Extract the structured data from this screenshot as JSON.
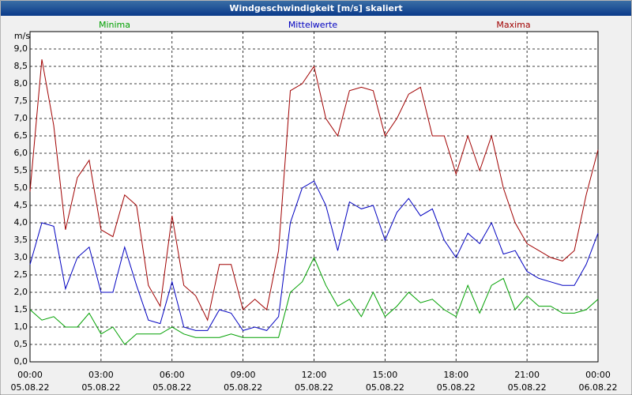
{
  "chart_data": {
    "type": "line",
    "title": "Windgeschwindigkeit [m/s] skaliert",
    "ylabel": "m/s",
    "x": [
      0,
      0.5,
      1,
      1.5,
      2,
      2.5,
      3,
      3.5,
      4,
      4.5,
      5,
      5.5,
      6,
      6.5,
      7,
      7.5,
      8,
      8.5,
      9,
      9.5,
      10,
      10.5,
      11,
      11.5,
      12,
      12.5,
      13,
      13.5,
      14,
      14.5,
      15,
      15.5,
      16,
      16.5,
      17,
      17.5,
      18,
      18.5,
      19,
      19.5,
      20,
      20.5,
      21,
      21.5,
      22,
      22.5,
      23,
      23.5,
      24
    ],
    "series": [
      {
        "name": "Minima",
        "color": "#00a000",
        "values": [
          1.5,
          1.2,
          1.3,
          1.0,
          1.0,
          1.4,
          0.8,
          1.0,
          0.5,
          0.8,
          0.8,
          0.8,
          1.0,
          0.8,
          0.7,
          0.7,
          0.7,
          0.8,
          0.7,
          0.7,
          0.7,
          0.7,
          2.0,
          2.3,
          3.0,
          2.2,
          1.6,
          1.8,
          1.3,
          2.0,
          1.3,
          1.6,
          2.0,
          1.7,
          1.8,
          1.5,
          1.3,
          2.2,
          1.4,
          2.2,
          2.4,
          1.5,
          1.9,
          1.6,
          1.6,
          1.4,
          1.4,
          1.5,
          1.8
        ]
      },
      {
        "name": "Mittelwerte",
        "color": "#0000c0",
        "values": [
          2.8,
          4.0,
          3.9,
          2.1,
          3.0,
          3.3,
          2.0,
          2.0,
          3.3,
          2.2,
          1.2,
          1.1,
          2.3,
          1.0,
          0.9,
          0.9,
          1.5,
          1.4,
          0.9,
          1.0,
          0.9,
          1.3,
          4.0,
          5.0,
          5.2,
          4.5,
          3.2,
          4.6,
          4.4,
          4.5,
          3.5,
          4.3,
          4.7,
          4.2,
          4.4,
          3.5,
          3.0,
          3.7,
          3.4,
          4.0,
          3.1,
          3.2,
          2.6,
          2.4,
          2.3,
          2.2,
          2.2,
          2.8,
          3.7
        ]
      },
      {
        "name": "Maxima",
        "color": "#a00000",
        "values": [
          4.9,
          8.7,
          6.8,
          3.8,
          5.3,
          5.8,
          3.8,
          3.6,
          4.8,
          4.5,
          2.2,
          1.6,
          4.2,
          2.2,
          1.9,
          1.2,
          2.8,
          2.8,
          1.5,
          1.8,
          1.5,
          3.2,
          7.8,
          8.0,
          8.5,
          7.0,
          6.5,
          7.8,
          7.9,
          7.8,
          6.5,
          7.0,
          7.7,
          7.9,
          6.5,
          6.5,
          5.4,
          6.5,
          5.5,
          6.5,
          5.0,
          4.0,
          3.4,
          3.2,
          3.0,
          2.9,
          3.2,
          4.8,
          6.1
        ]
      }
    ],
    "xlim": [
      0,
      24
    ],
    "xticks": [
      {
        "value": 0,
        "label": "00:00"
      },
      {
        "value": 3,
        "label": "03:00"
      },
      {
        "value": 6,
        "label": "06:00"
      },
      {
        "value": 9,
        "label": "09:00"
      },
      {
        "value": 12,
        "label": "12:00"
      },
      {
        "value": 15,
        "label": "15:00"
      },
      {
        "value": 18,
        "label": "18:00"
      },
      {
        "value": 21,
        "label": "21:00"
      },
      {
        "value": 24,
        "label": "00:00"
      }
    ],
    "xtick_dates": [
      "05.08.22",
      "05.08.22",
      "05.08.22",
      "05.08.22",
      "05.08.22",
      "05.08.22",
      "05.08.22",
      "05.08.22",
      "06.08.22"
    ],
    "ylim": [
      0,
      9.5
    ],
    "yticks": [
      {
        "value": 0,
        "label": "0,0"
      },
      {
        "value": 0.5,
        "label": "0,5"
      },
      {
        "value": 1,
        "label": "1,0"
      },
      {
        "value": 1.5,
        "label": "1,5"
      },
      {
        "value": 2,
        "label": "2,0"
      },
      {
        "value": 2.5,
        "label": "2,5"
      },
      {
        "value": 3,
        "label": "3,0"
      },
      {
        "value": 3.5,
        "label": "3,5"
      },
      {
        "value": 4,
        "label": "4,0"
      },
      {
        "value": 4.5,
        "label": "4,5"
      },
      {
        "value": 5,
        "label": "5,0"
      },
      {
        "value": 5.5,
        "label": "5,5"
      },
      {
        "value": 6,
        "label": "6,0"
      },
      {
        "value": 6.5,
        "label": "6,5"
      },
      {
        "value": 7,
        "label": "7,0"
      },
      {
        "value": 7.5,
        "label": "7,5"
      },
      {
        "value": 8,
        "label": "8,0"
      },
      {
        "value": 8.5,
        "label": "8,5"
      },
      {
        "value": 9,
        "label": "9,0"
      }
    ],
    "grid": true
  }
}
